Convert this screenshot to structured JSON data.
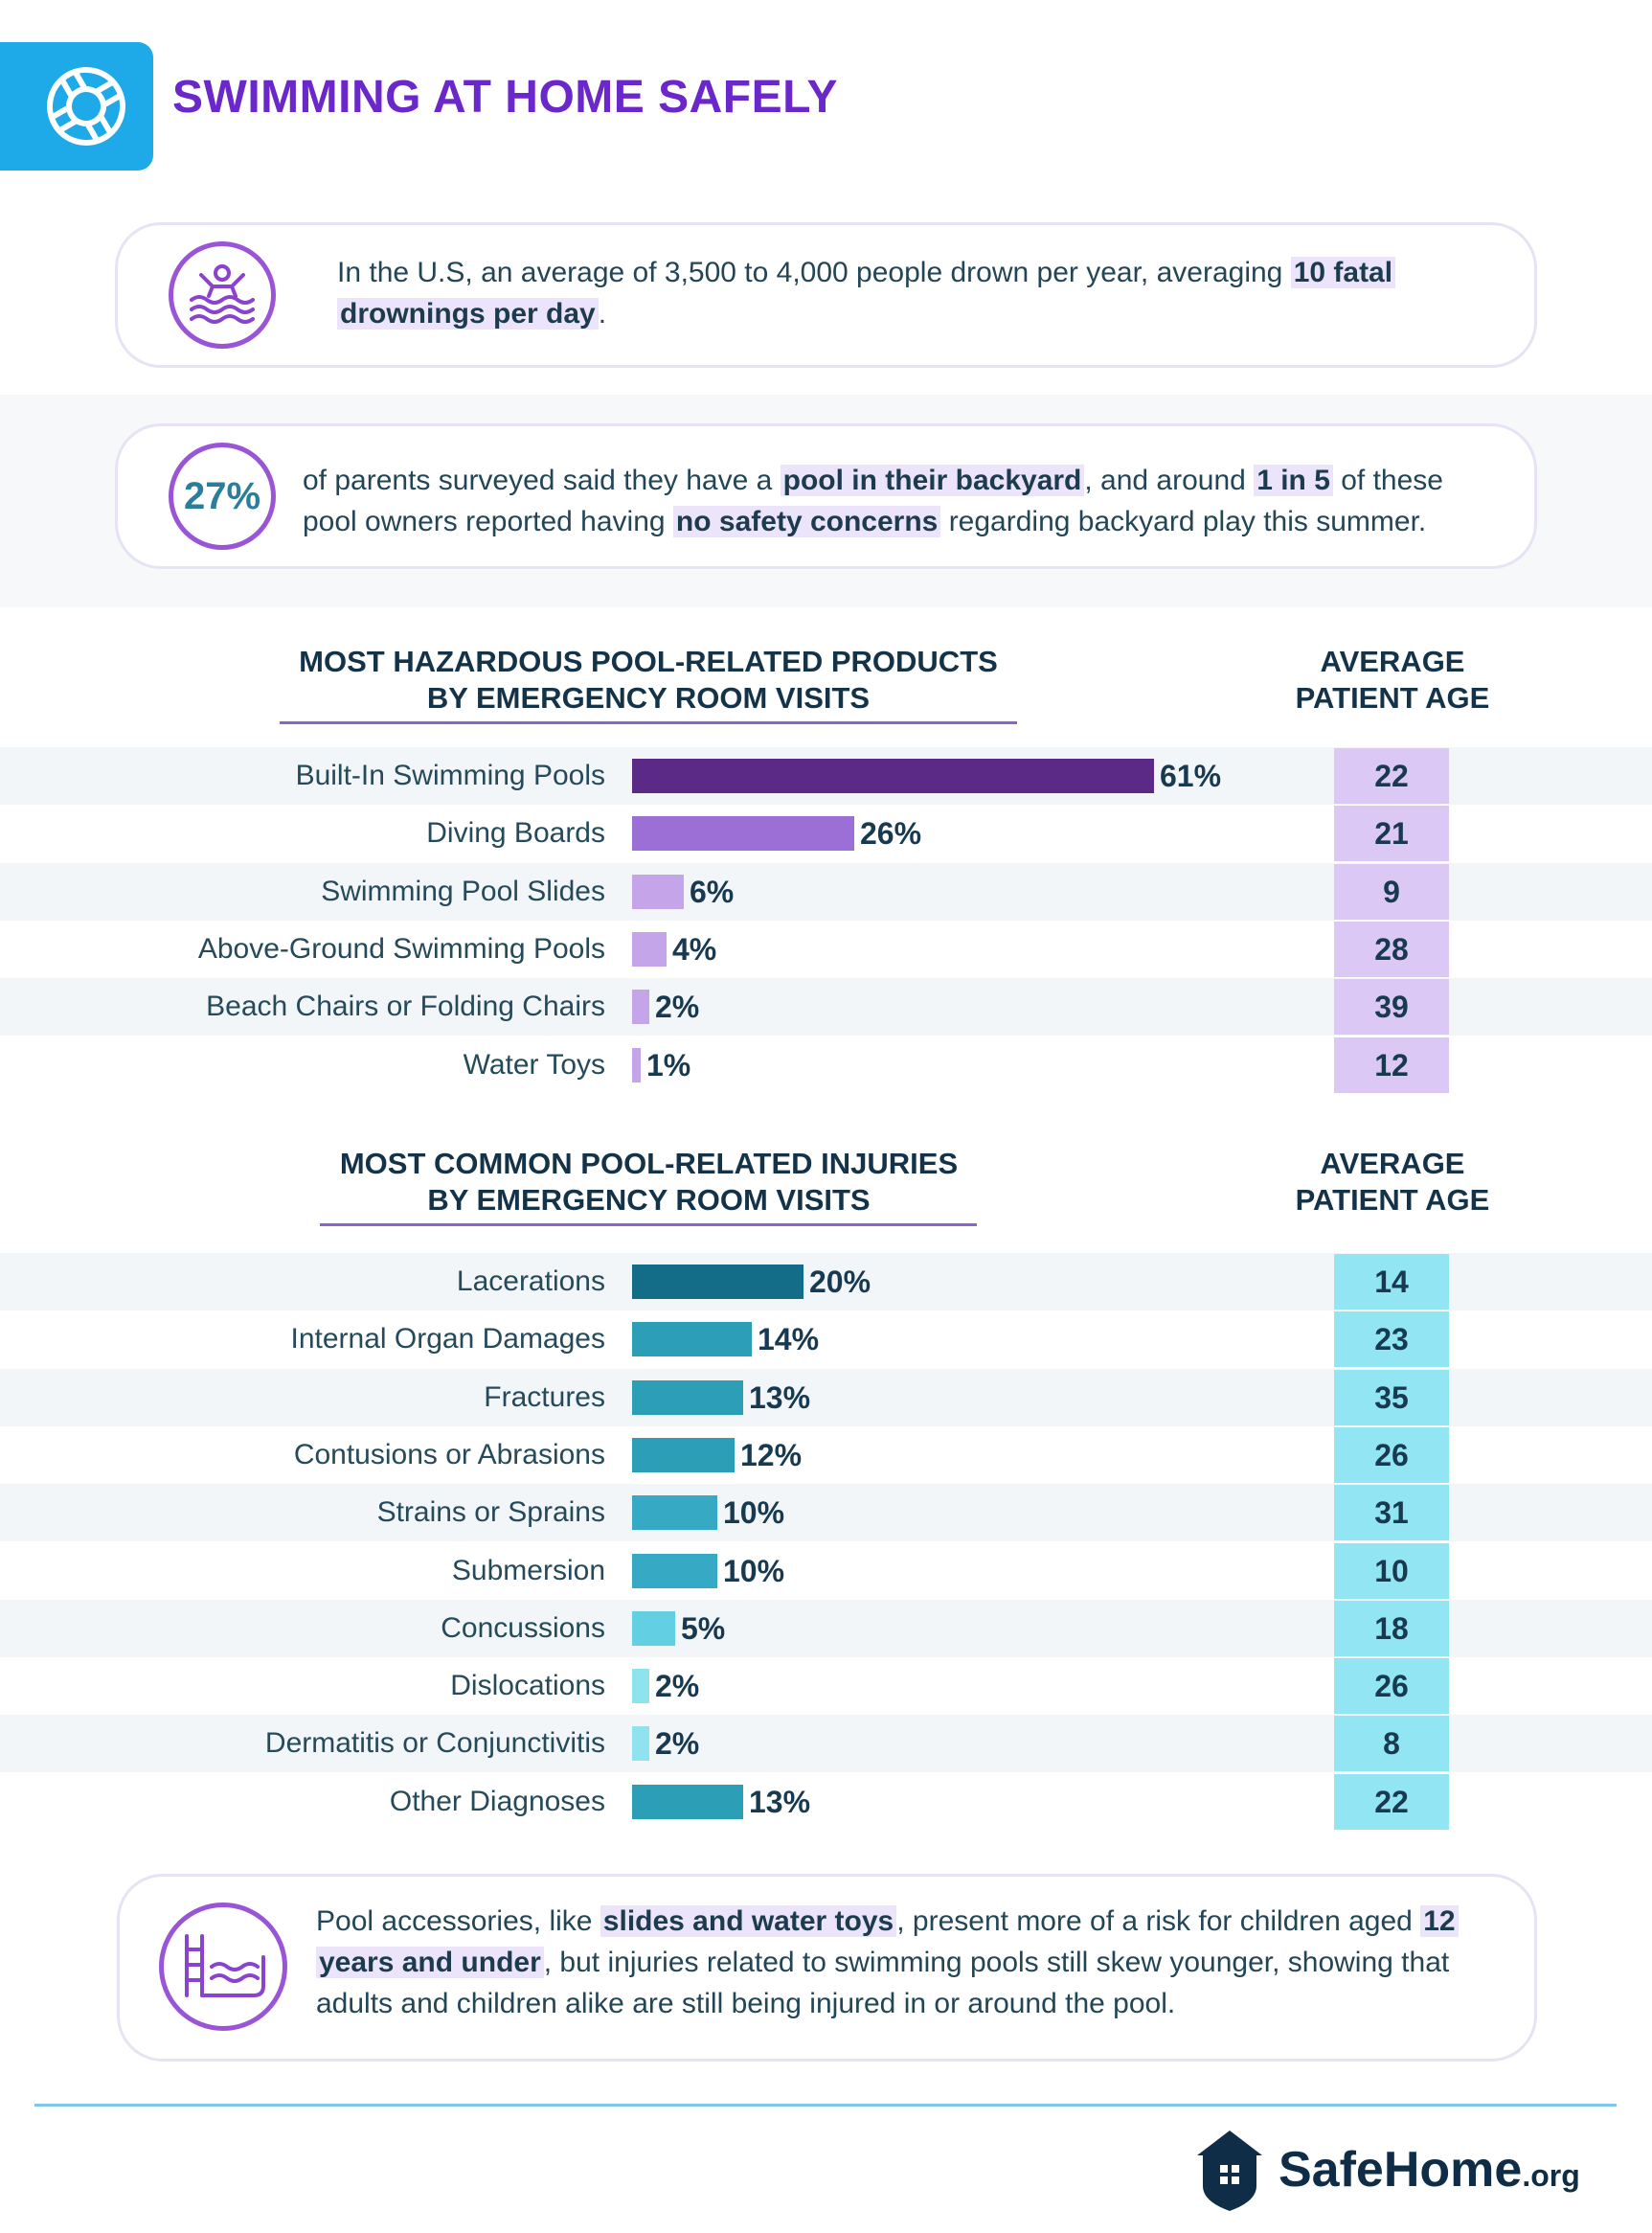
{
  "header": {
    "title": "SWIMMING AT HOME SAFELY",
    "icon": "life-ring-icon",
    "accent": "#1ea9e8",
    "title_color": "#6a27c9"
  },
  "fact1": {
    "icon": "swimmer-icon",
    "t1": "In the U.S, an average of 3,500 to 4,000 people drown per year, averaging ",
    "h1": "10 fatal",
    "h2": "drownings per day",
    "t2": "."
  },
  "fact2": {
    "stat": "27%",
    "t1": "of parents surveyed said they have a ",
    "h1": "pool in their backyard",
    "t2": ", and around ",
    "h2": "1 in 5",
    "t3": " of these",
    "t4": "pool owners reported having ",
    "h3": "no safety concerns",
    "t5": " regarding backyard play this summer."
  },
  "chart_data": [
    {
      "type": "bar",
      "title": "MOST HAZARDOUS POOL-RELATED PRODUCTS BY EMERGENCY ROOM VISITS",
      "title_lines": [
        "MOST HAZARDOUS POOL-RELATED PRODUCTS",
        "BY EMERGENCY ROOM VISITS"
      ],
      "age_header_lines": [
        "AVERAGE",
        "PATIENT AGE"
      ],
      "categories": [
        "Built-In Swimming Pools",
        "Diving Boards",
        "Swimming Pool Slides",
        "Above-Ground Swimming Pools",
        "Beach Chairs or Folding Chairs",
        "Water Toys"
      ],
      "values": [
        61,
        26,
        6,
        4,
        2,
        1
      ],
      "labels": [
        "61%",
        "26%",
        "6%",
        "4%",
        "2%",
        "1%"
      ],
      "ages": [
        22,
        21,
        9,
        28,
        39,
        12
      ],
      "colors": [
        "#5a2a86",
        "#9b6fd5",
        "#c5a5ea",
        "#c5a5ea",
        "#c5a5ea",
        "#c5a5ea"
      ],
      "age_color": "#dcc8f5",
      "accent": "#8a63d2"
    },
    {
      "type": "bar",
      "title": "MOST COMMON POOL-RELATED INJURIES BY EMERGENCY ROOM VISITS",
      "title_lines": [
        "MOST COMMON POOL-RELATED INJURIES",
        "BY EMERGENCY ROOM VISITS"
      ],
      "age_header_lines": [
        "AVERAGE",
        "PATIENT AGE"
      ],
      "categories": [
        "Lacerations",
        "Internal Organ Damages",
        "Fractures",
        "Contusions or Abrasions",
        "Strains or Sprains",
        "Submersion",
        "Concussions",
        "Dislocations",
        "Dermatitis or Conjunctivitis",
        "Other Diagnoses"
      ],
      "values": [
        20,
        14,
        13,
        12,
        10,
        10,
        5,
        2,
        2,
        13
      ],
      "labels": [
        "20%",
        "14%",
        "13%",
        "12%",
        "10%",
        "10%",
        "5%",
        "2%",
        "2%",
        "13%"
      ],
      "ages": [
        14,
        23,
        35,
        26,
        31,
        10,
        18,
        26,
        8,
        22
      ],
      "colors": [
        "#136d89",
        "#2c9eb6",
        "#2c9eb6",
        "#2c9eb6",
        "#36aac4",
        "#36aac4",
        "#62cfe3",
        "#8ee3ef",
        "#8ee3ef",
        "#2c9eb6"
      ],
      "age_color": "#92e6f3",
      "accent": "#8a63d2"
    }
  ],
  "fact3": {
    "icon": "pool-ladder-icon",
    "t1": "Pool accessories, like ",
    "h1": "slides and water toys",
    "t2": ", present more of a risk for children aged ",
    "h2": "12",
    "h3": "years and under",
    "t3": ", but injuries related to swimming pools still skew younger, showing that",
    "t4": "adults and children alike are still being injured in or around the pool."
  },
  "footer": {
    "brand": "SafeHome",
    "brand_suffix": ".org",
    "icon": "house-shield-icon"
  }
}
